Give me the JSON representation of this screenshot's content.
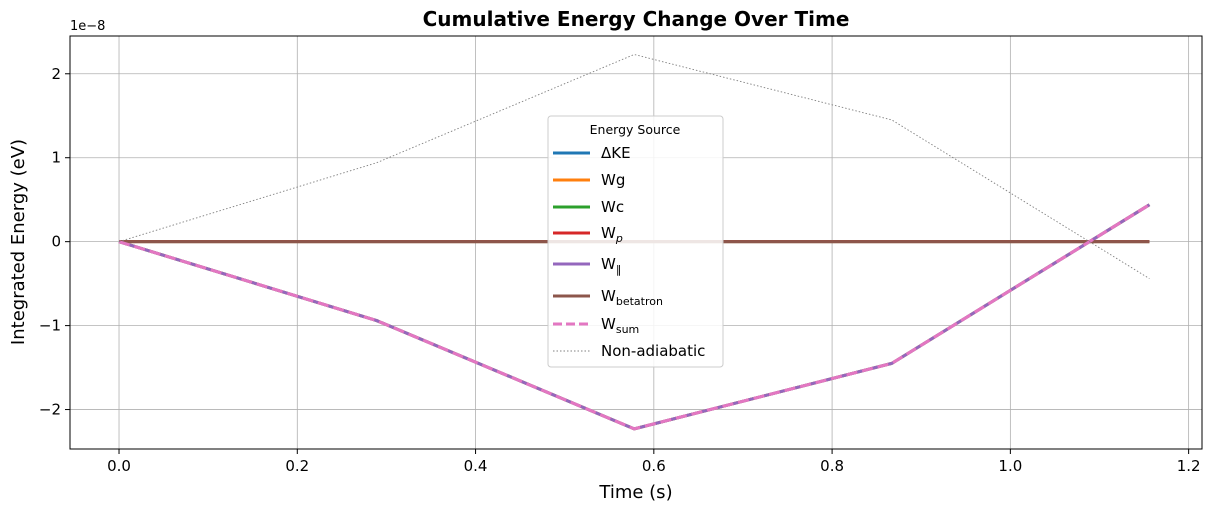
{
  "chart_data": {
    "type": "line",
    "title": "Cumulative Energy Change Over Time",
    "xlabel": "Time (s)",
    "ylabel": "Integrated Energy (eV)",
    "y_scale_label": "1e−8",
    "y_multiplier": 1e-08,
    "xlim": [
      -0.055,
      1.215
    ],
    "ylim": [
      -2.47,
      2.45
    ],
    "x_ticks": [
      0.0,
      0.2,
      0.4,
      0.6,
      0.8,
      1.0,
      1.2
    ],
    "x_tick_labels": [
      "0.0",
      "0.2",
      "0.4",
      "0.6",
      "0.8",
      "1.0",
      "1.2"
    ],
    "y_ticks": [
      -2,
      -1,
      0,
      1,
      2
    ],
    "y_tick_labels": [
      "−2",
      "−1",
      "0",
      "1",
      "2"
    ],
    "grid": true,
    "legend_title": "Energy Source",
    "legend_position": "center",
    "x": [
      0.0,
      0.289,
      0.578,
      0.867,
      1.156
    ],
    "series": [
      {
        "id": "dke",
        "name": "ΔKE",
        "color": "#1f77b4",
        "style": "solid",
        "values": [
          0,
          -0.94,
          -2.23,
          -1.45,
          0.44
        ]
      },
      {
        "id": "wg",
        "name": "Wg",
        "color": "#ff7f0e",
        "style": "solid",
        "values": [
          0,
          -0.94,
          -2.23,
          -1.45,
          0.44
        ]
      },
      {
        "id": "wc",
        "name": "Wc",
        "color": "#2ca02c",
        "style": "solid",
        "values": [
          0,
          0,
          0,
          0,
          0
        ]
      },
      {
        "id": "wp",
        "name": "W",
        "sub": "p",
        "color": "#d62728",
        "style": "solid",
        "values": [
          0,
          0,
          0,
          0,
          0
        ]
      },
      {
        "id": "wpar",
        "name": "W",
        "sub": "‖",
        "color": "#9467bd",
        "style": "solid",
        "values": [
          0,
          -0.94,
          -2.23,
          -1.45,
          0.44
        ]
      },
      {
        "id": "wbeta",
        "name": "W",
        "sub": "betatron",
        "color": "#8c564b",
        "style": "solid",
        "values": [
          0,
          0,
          0,
          0,
          0
        ]
      },
      {
        "id": "wsum",
        "name": "W",
        "sub": "sum",
        "color": "#e377c2",
        "style": "dashed",
        "values": [
          0,
          -0.94,
          -2.23,
          -1.45,
          0.44
        ]
      },
      {
        "id": "nonad",
        "name": "Non-adiabatic",
        "color": "#808080",
        "style": "dotted",
        "values": [
          0,
          0.94,
          2.23,
          1.45,
          -0.44
        ]
      }
    ]
  }
}
